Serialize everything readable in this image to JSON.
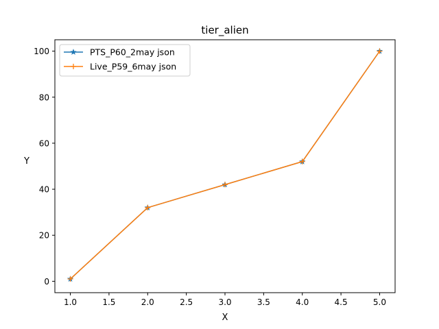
{
  "chart_data": {
    "type": "line",
    "title": "tier_alien",
    "xlabel": "X",
    "ylabel": "Y",
    "x": [
      1.0,
      2.0,
      3.0,
      4.0,
      5.0
    ],
    "xlim": [
      0.8,
      5.2
    ],
    "ylim": [
      -4.95,
      104.95
    ],
    "xticks": [
      1.0,
      1.5,
      2.0,
      2.5,
      3.0,
      3.5,
      4.0,
      4.5,
      5.0
    ],
    "xtick_labels": [
      "1.0",
      "1.5",
      "2.0",
      "2.5",
      "3.0",
      "3.5",
      "4.0",
      "4.5",
      "5.0"
    ],
    "yticks": [
      0,
      20,
      40,
      60,
      80,
      100
    ],
    "ytick_labels": [
      "0",
      "20",
      "40",
      "60",
      "80",
      "100"
    ],
    "grid": false,
    "legend_position": "upper-left",
    "series": [
      {
        "name": "PTS_P60_2may json",
        "values": [
          1,
          32,
          42,
          52,
          100
        ],
        "color": "#1f77b4",
        "marker": "star"
      },
      {
        "name": "Live_P59_6may json",
        "values": [
          1,
          32,
          42,
          52,
          100
        ],
        "color": "#ff7f0e",
        "marker": "plus"
      }
    ]
  }
}
